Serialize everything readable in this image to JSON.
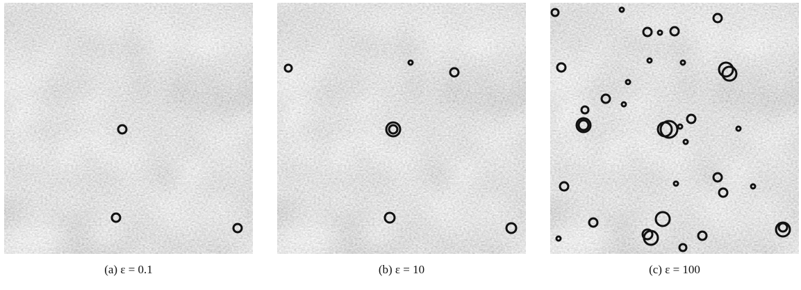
{
  "captions": [
    "(a) ε = 0.1",
    "(b) ε = 10",
    "(c) ε = 100"
  ]
}
